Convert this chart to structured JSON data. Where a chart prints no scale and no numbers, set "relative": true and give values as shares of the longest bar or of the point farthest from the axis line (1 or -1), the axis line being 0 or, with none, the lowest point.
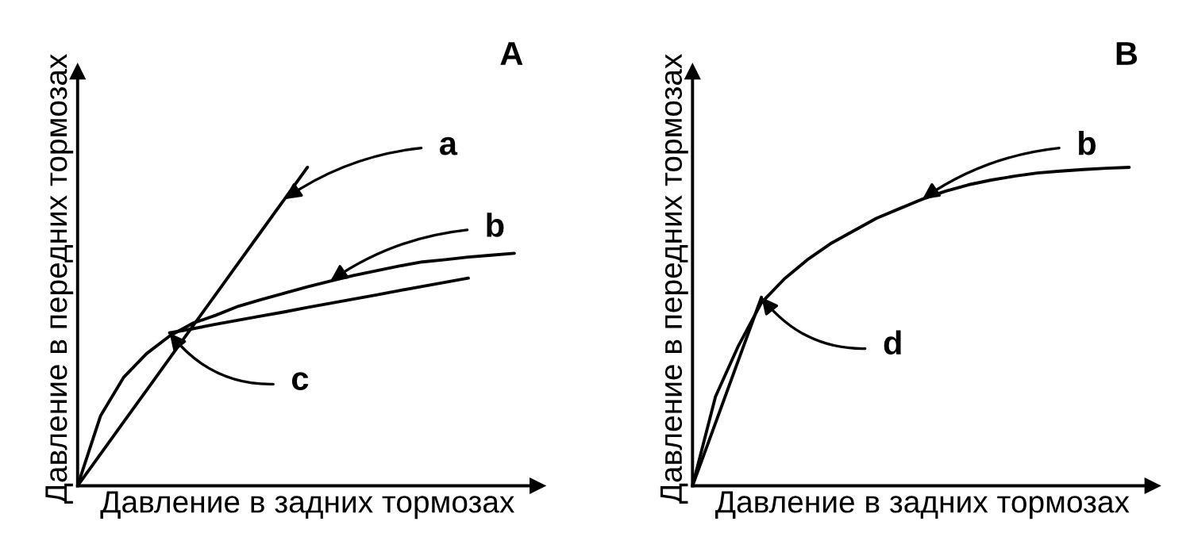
{
  "chart_data": [
    {
      "type": "line",
      "title": "A",
      "xlabel": "Давление в задних тормозах",
      "ylabel": "Давление в передних тормозах",
      "relative": true,
      "tick_labels": false,
      "marker": "none",
      "line_style": "solid",
      "categories": [
        null,
        null,
        null,
        null,
        null,
        null,
        null,
        null,
        null,
        null,
        null,
        null,
        null,
        null,
        null,
        null,
        null,
        null,
        null,
        null,
        null
      ],
      "series": [
        {
          "color": "#000000",
          "values": [
            0,
            0.1,
            0.2,
            0.3,
            0.4,
            0.5,
            0.6,
            0.7,
            0.8,
            0.9,
            1.0,
            null,
            null,
            null,
            null,
            null,
            null,
            null,
            null,
            null,
            null
          ]
        },
        {
          "color": "#000000",
          "values": [
            0,
            0.22,
            0.34,
            0.415,
            0.47,
            0.51,
            0.535,
            0.564,
            0.585,
            0.605,
            0.625,
            0.643,
            0.66,
            0.675,
            0.69,
            0.703,
            0.71,
            0.718,
            0.724,
            0.73,
            null
          ]
        },
        {
          "color": "#000000",
          "values": [
            null,
            null,
            null,
            null,
            0.48,
            0.493,
            0.507,
            0.52,
            0.533,
            0.546,
            0.56,
            0.573,
            0.586,
            0.599,
            0.613,
            0.626,
            0.639,
            0.652,
            null,
            null,
            null
          ]
        }
      ],
      "annotations": [
        "a",
        "b",
        "c"
      ]
    },
    {
      "type": "line",
      "title": "B",
      "xlabel": "Давление в задних тормозах",
      "ylabel": "Давление в передних тормозах",
      "relative": true,
      "tick_labels": false,
      "marker": "none",
      "line_style": "solid",
      "categories": [
        null,
        null,
        null,
        null,
        null,
        null,
        null,
        null,
        null,
        null,
        null,
        null,
        null,
        null,
        null,
        null,
        null,
        null,
        null,
        null,
        null
      ],
      "series": [
        {
          "color": "#000000",
          "values": [
            0,
            0.28,
            0.44,
            0.575,
            0.65,
            0.71,
            0.76,
            0.8,
            0.84,
            0.87,
            0.9,
            0.925,
            0.945,
            0.96,
            0.972,
            0.982,
            0.988,
            0.993,
            0.997,
            1.0,
            null
          ]
        },
        {
          "color": "#000000",
          "values": [
            0,
            0.197,
            0.395,
            0.592,
            null,
            null,
            null,
            null,
            null,
            null,
            null,
            null,
            null,
            null,
            null,
            null,
            null,
            null,
            null,
            null,
            null
          ]
        }
      ],
      "annotations": [
        "b",
        "d"
      ]
    }
  ]
}
